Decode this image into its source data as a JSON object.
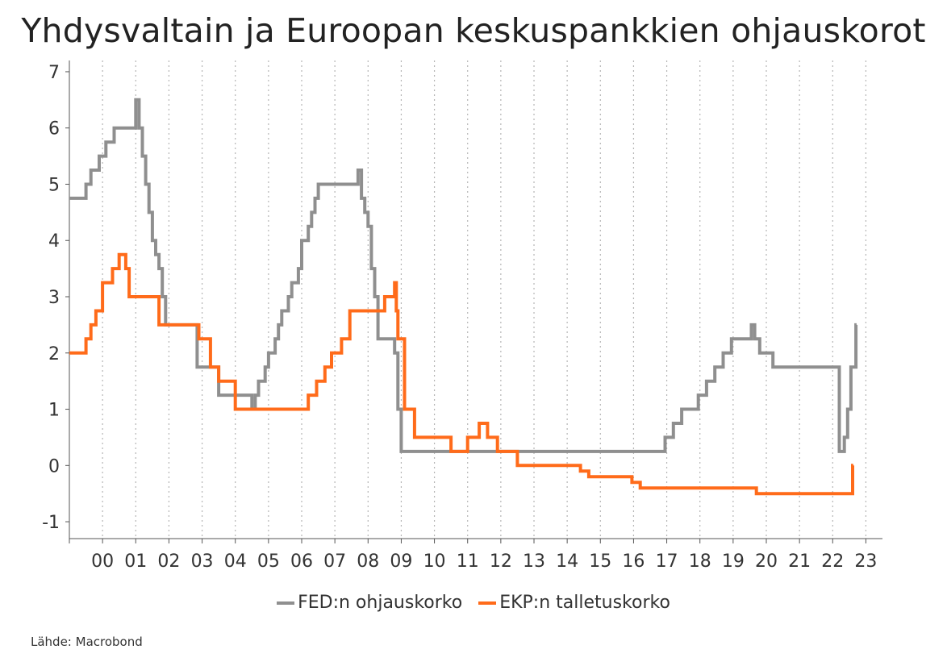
{
  "title": "Yhdysvaltain ja Euroopan keskuspankkien ohjauskorot",
  "source": "Lähde: Macrobond",
  "chart_data": {
    "type": "line",
    "title": "Yhdysvaltain ja Euroopan keskuspankkien ohjauskorot",
    "xlabel": "",
    "ylabel": "",
    "xlim": [
      1999,
      2023.5
    ],
    "ylim": [
      -1.3,
      7.2
    ],
    "y_ticks": [
      -1,
      0,
      1,
      2,
      3,
      4,
      5,
      6,
      7
    ],
    "y_tick_labels": [
      "-1",
      "0",
      "1",
      "2",
      "3",
      "4",
      "5",
      "6",
      "7"
    ],
    "x_tick_labels": [
      "00",
      "01",
      "02",
      "03",
      "04",
      "05",
      "06",
      "07",
      "08",
      "09",
      "10",
      "11",
      "12",
      "13",
      "14",
      "15",
      "16",
      "17",
      "18",
      "19",
      "20",
      "21",
      "22",
      "23"
    ],
    "grid": "vertical dotted",
    "legend_position": "bottom",
    "series": [
      {
        "name": "FED:n ohjauskorko",
        "color": "#8f8f8f",
        "step": true,
        "x": [
          1999.0,
          1999.5,
          1999.65,
          1999.9,
          2000.1,
          2000.35,
          2001.0,
          2001.1,
          2001.2,
          2001.3,
          2001.4,
          2001.5,
          2001.6,
          2001.7,
          2001.8,
          2001.9,
          2002.85,
          2003.5,
          2004.5,
          2004.6,
          2004.7,
          2004.9,
          2005.0,
          2005.2,
          2005.3,
          2005.4,
          2005.6,
          2005.7,
          2005.9,
          2006.0,
          2006.2,
          2006.3,
          2006.4,
          2006.5,
          2007.7,
          2007.8,
          2007.9,
          2008.0,
          2008.1,
          2008.2,
          2008.3,
          2008.8,
          2008.9,
          2009.0,
          2015.95,
          2016.95,
          2017.2,
          2017.45,
          2017.95,
          2018.2,
          2018.45,
          2018.7,
          2018.95,
          2019.55,
          2019.65,
          2019.8,
          2020.2,
          2022.2,
          2022.35,
          2022.45,
          2022.55,
          2022.7
        ],
        "y": [
          4.75,
          5.0,
          5.25,
          5.5,
          5.75,
          6.0,
          6.5,
          6.0,
          5.5,
          5.0,
          4.5,
          4.0,
          3.75,
          3.5,
          3.0,
          2.5,
          1.75,
          1.25,
          1.0,
          1.25,
          1.5,
          1.75,
          2.0,
          2.25,
          2.5,
          2.75,
          3.0,
          3.25,
          3.5,
          4.0,
          4.25,
          4.5,
          4.75,
          5.0,
          5.25,
          4.75,
          4.5,
          4.25,
          3.5,
          3.0,
          2.25,
          2.0,
          1.0,
          0.25,
          0.25,
          0.5,
          0.75,
          1.0,
          1.25,
          1.5,
          1.75,
          2.0,
          2.25,
          2.5,
          2.25,
          2.0,
          1.75,
          0.25,
          0.5,
          1.0,
          1.75,
          2.5
        ]
      },
      {
        "name": "EKP:n talletuskorko",
        "color": "#ff6b1a",
        "step": true,
        "x": [
          1999.0,
          1999.5,
          1999.65,
          1999.8,
          2000.0,
          2000.3,
          2000.5,
          2000.7,
          2000.8,
          2001.7,
          2002.9,
          2003.25,
          2003.5,
          2004.0,
          2005.9,
          2006.2,
          2006.45,
          2006.7,
          2006.9,
          2007.2,
          2007.45,
          2008.5,
          2008.8,
          2008.85,
          2008.9,
          2009.1,
          2009.4,
          2010.5,
          2010.75,
          2011.0,
          2011.35,
          2011.6,
          2011.9,
          2012.5,
          2014.4,
          2014.65,
          2015.95,
          2016.2,
          2019.7,
          2022.55,
          2022.6
        ],
        "y": [
          2.0,
          2.25,
          2.5,
          2.75,
          3.25,
          3.5,
          3.75,
          3.5,
          3.0,
          2.5,
          2.25,
          1.75,
          1.5,
          1.0,
          1.0,
          1.25,
          1.5,
          1.75,
          2.0,
          2.25,
          2.75,
          3.0,
          3.25,
          2.75,
          2.25,
          1.0,
          0.5,
          0.25,
          0.25,
          0.5,
          0.75,
          0.5,
          0.25,
          0.0,
          -0.1,
          -0.2,
          -0.3,
          -0.4,
          -0.5,
          -0.5,
          0.0
        ]
      }
    ]
  }
}
